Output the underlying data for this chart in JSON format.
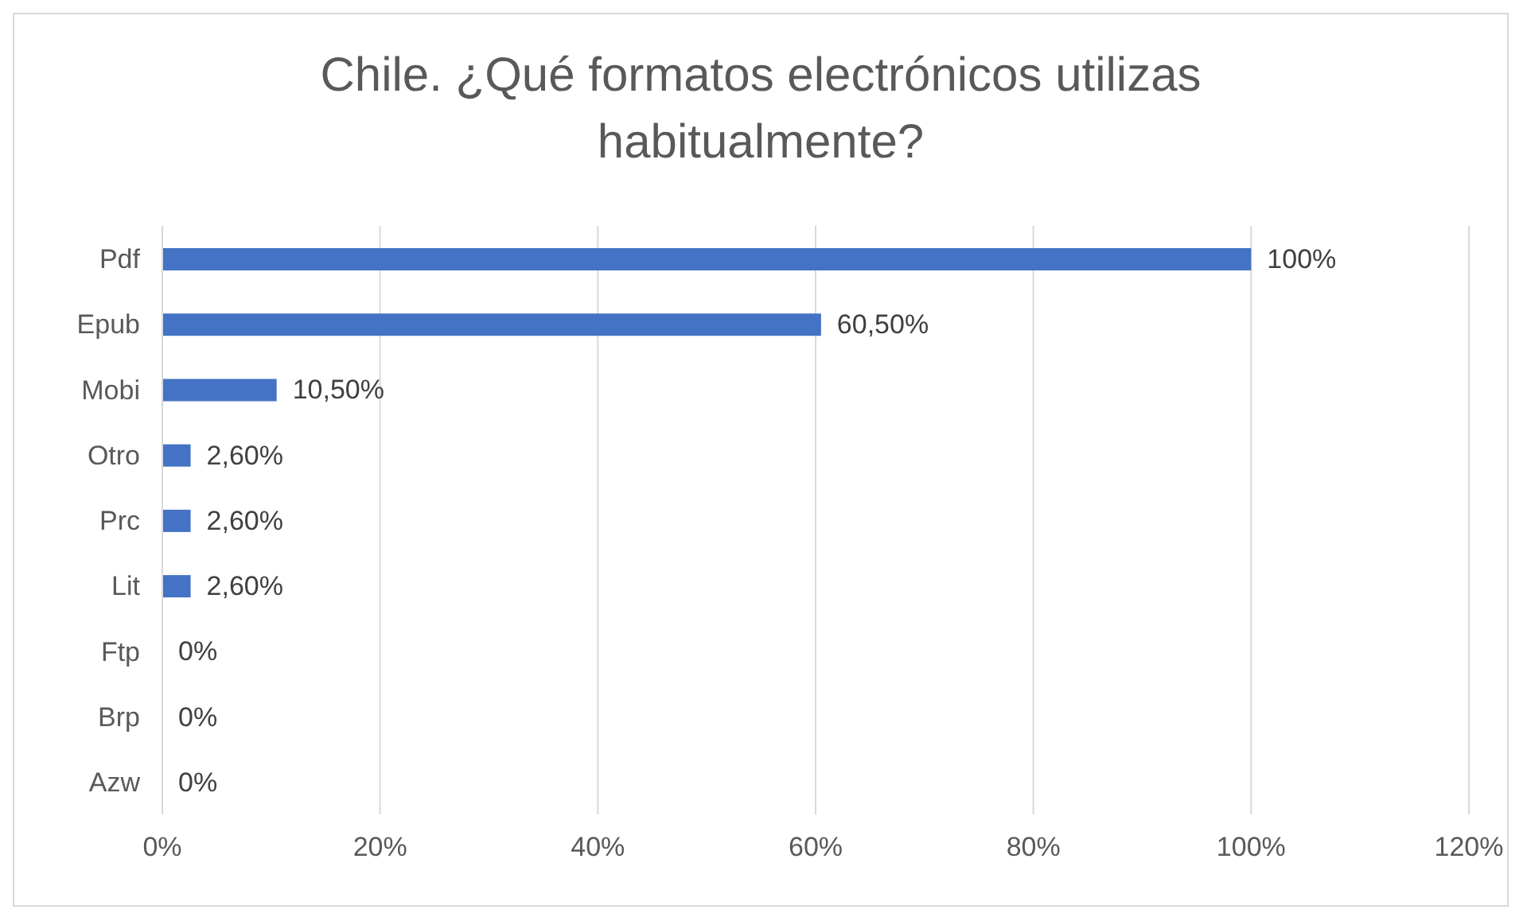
{
  "chart_data": {
    "type": "bar",
    "orientation": "horizontal",
    "title": "Chile.  ¿Qué formatos electrónicos utilizas habitualmente?",
    "categories": [
      "Pdf",
      "Epub",
      "Mobi",
      "Otro",
      "Prc",
      "Lit",
      "Ftp",
      "Brp",
      "Azw"
    ],
    "values": [
      100,
      60.5,
      10.5,
      2.6,
      2.6,
      2.6,
      0,
      0,
      0
    ],
    "value_labels": [
      "100%",
      "60,50%",
      "10,50%",
      "2,60%",
      "2,60%",
      "2,60%",
      "0%",
      "0%",
      "0%"
    ],
    "color": "#4472c4",
    "xlim": [
      0,
      120
    ],
    "xticks": [
      {
        "value": 0,
        "label": "0%"
      },
      {
        "value": 20,
        "label": "20%"
      },
      {
        "value": 40,
        "label": "40%"
      },
      {
        "value": 60,
        "label": "60%"
      },
      {
        "value": 80,
        "label": "80%"
      },
      {
        "value": 100,
        "label": "100%"
      },
      {
        "value": 120,
        "label": "120%"
      }
    ],
    "grid": "x",
    "legend": false
  }
}
